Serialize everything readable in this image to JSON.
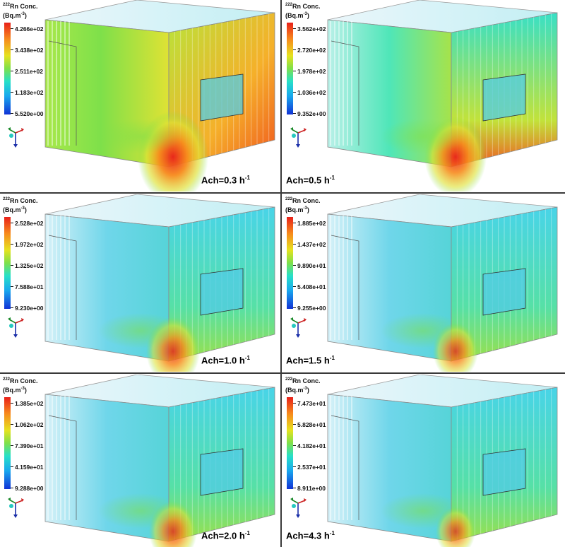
{
  "legend": {
    "title": "Rn Conc.",
    "isotope": "222",
    "unit_base": "(Bq.m",
    "unit_exp": "-3",
    "unit_close": ")"
  },
  "panels": [
    {
      "id": "p1",
      "ticks": [
        "4.266e+02",
        "3.438e+02",
        "2.511e+02",
        "1.183e+02",
        "5.520e+00"
      ],
      "ach_label": "Ach=0.3 h",
      "ach_exp": "-1"
    },
    {
      "id": "p2",
      "ticks": [
        "3.562e+02",
        "2.720e+02",
        "1.978e+02",
        "1.036e+02",
        "9.352e+00"
      ],
      "ach_label": "Ach=0.5 h",
      "ach_exp": "-1"
    },
    {
      "id": "p3",
      "ticks": [
        "2.528e+02",
        "1.972e+02",
        "1.325e+02",
        "7.588e+01",
        "9.230e+00"
      ],
      "ach_label": "Ach=1.0 h",
      "ach_exp": "-1"
    },
    {
      "id": "p4",
      "ticks": [
        "1.885e+02",
        "1.437e+02",
        "9.890e+01",
        "5.408e+01",
        "9.255e+00"
      ],
      "ach_label": "Ach=1.5 h",
      "ach_exp": "-1"
    },
    {
      "id": "p5",
      "ticks": [
        "1.385e+02",
        "1.062e+02",
        "7.390e+01",
        "4.159e+01",
        "9.288e+00"
      ],
      "ach_label": "Ach=2.0 h",
      "ach_exp": "-1"
    },
    {
      "id": "p6",
      "ticks": [
        "7.473e+01",
        "5.828e+01",
        "4.182e+01",
        "2.537e+01",
        "8.911e+00"
      ],
      "ach_label": "Ach=4.3 h",
      "ach_exp": "-1"
    }
  ],
  "colors": {
    "hot": "#e8201a",
    "warm": "#f78a1c",
    "mid": "#7ee04a",
    "cool": "#27e0c8",
    "cold": "#1133d6"
  }
}
